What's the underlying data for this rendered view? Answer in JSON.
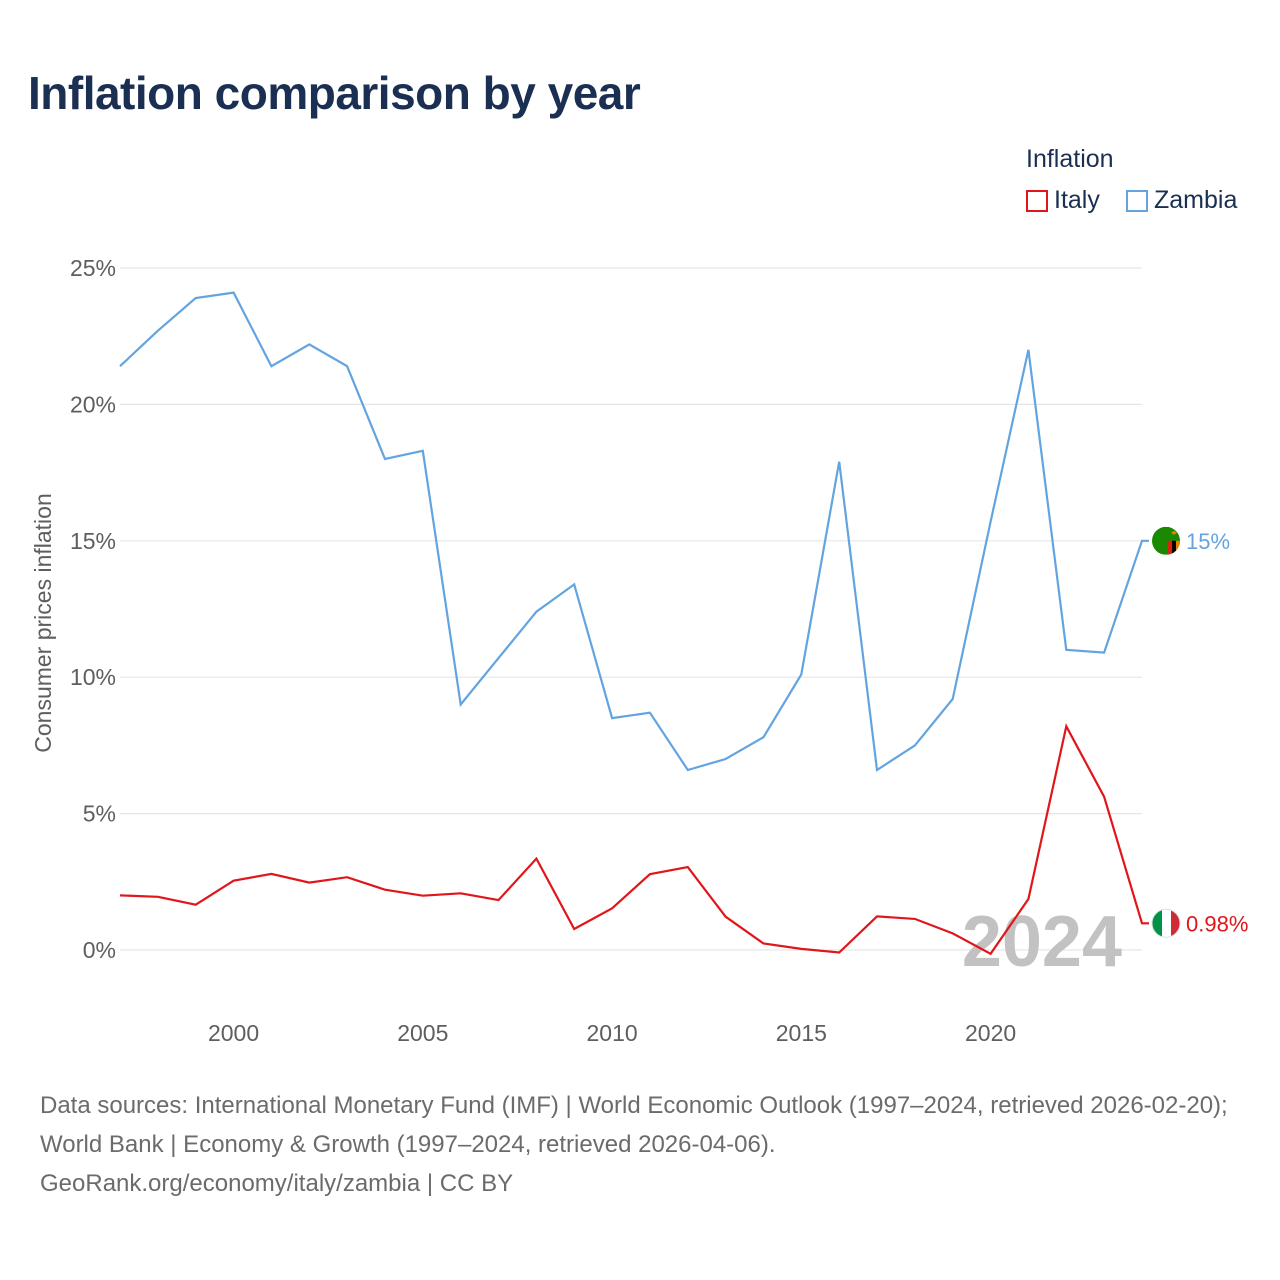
{
  "title": "Inflation comparison by year",
  "legend": {
    "title": "Inflation",
    "items": [
      {
        "label": "Italy",
        "color": "#e0161b"
      },
      {
        "label": "Zambia",
        "color": "#63a4e0"
      }
    ]
  },
  "footer": {
    "sources": "Data sources: International Monetary Fund (IMF) | World Economic Outlook (1997–2024, retrieved 2026-02-20); World Bank | Economy & Growth (1997–2024, retrieved 2026-04-06).",
    "credit": "GeoRank.org/economy/italy/zambia | CC BY"
  },
  "chart_data": {
    "type": "line",
    "ylabel": "Consumer prices inflation",
    "xlim": [
      1997,
      2024
    ],
    "ylim": [
      0,
      25
    ],
    "yticks": [
      0,
      5,
      10,
      15,
      20,
      25
    ],
    "ytick_labels": [
      "0%",
      "5%",
      "10%",
      "15%",
      "20%",
      "25%"
    ],
    "xticks": [
      2000,
      2005,
      2010,
      2015,
      2020
    ],
    "xtick_labels": [
      "2000",
      "2005",
      "2010",
      "2015",
      "2020"
    ],
    "grid": true,
    "year_watermark": "2024",
    "x": [
      1997,
      1998,
      1999,
      2000,
      2001,
      2002,
      2003,
      2004,
      2005,
      2006,
      2007,
      2008,
      2009,
      2010,
      2011,
      2012,
      2013,
      2014,
      2015,
      2016,
      2017,
      2018,
      2019,
      2020,
      2021,
      2022,
      2023,
      2024
    ],
    "series": [
      {
        "name": "Italy",
        "color": "#e0161b",
        "end_label": "0.98%",
        "flag": "italy-flag",
        "values": [
          2.0,
          1.95,
          1.66,
          2.54,
          2.79,
          2.47,
          2.67,
          2.21,
          1.99,
          2.08,
          1.83,
          3.35,
          0.77,
          1.53,
          2.78,
          3.04,
          1.22,
          0.24,
          0.04,
          -0.09,
          1.23,
          1.14,
          0.61,
          -0.14,
          1.87,
          8.2,
          5.62,
          0.98
        ]
      },
      {
        "name": "Zambia",
        "color": "#63a4e0",
        "end_label": "15%",
        "flag": "zambia-flag",
        "values": [
          21.4,
          22.7,
          23.9,
          24.1,
          21.4,
          22.2,
          21.4,
          18.0,
          18.3,
          9.0,
          10.7,
          12.4,
          13.4,
          8.5,
          8.7,
          6.6,
          7.0,
          7.8,
          10.1,
          17.9,
          6.6,
          7.5,
          9.2,
          15.7,
          22.0,
          11.0,
          10.9,
          15.0
        ]
      }
    ]
  }
}
